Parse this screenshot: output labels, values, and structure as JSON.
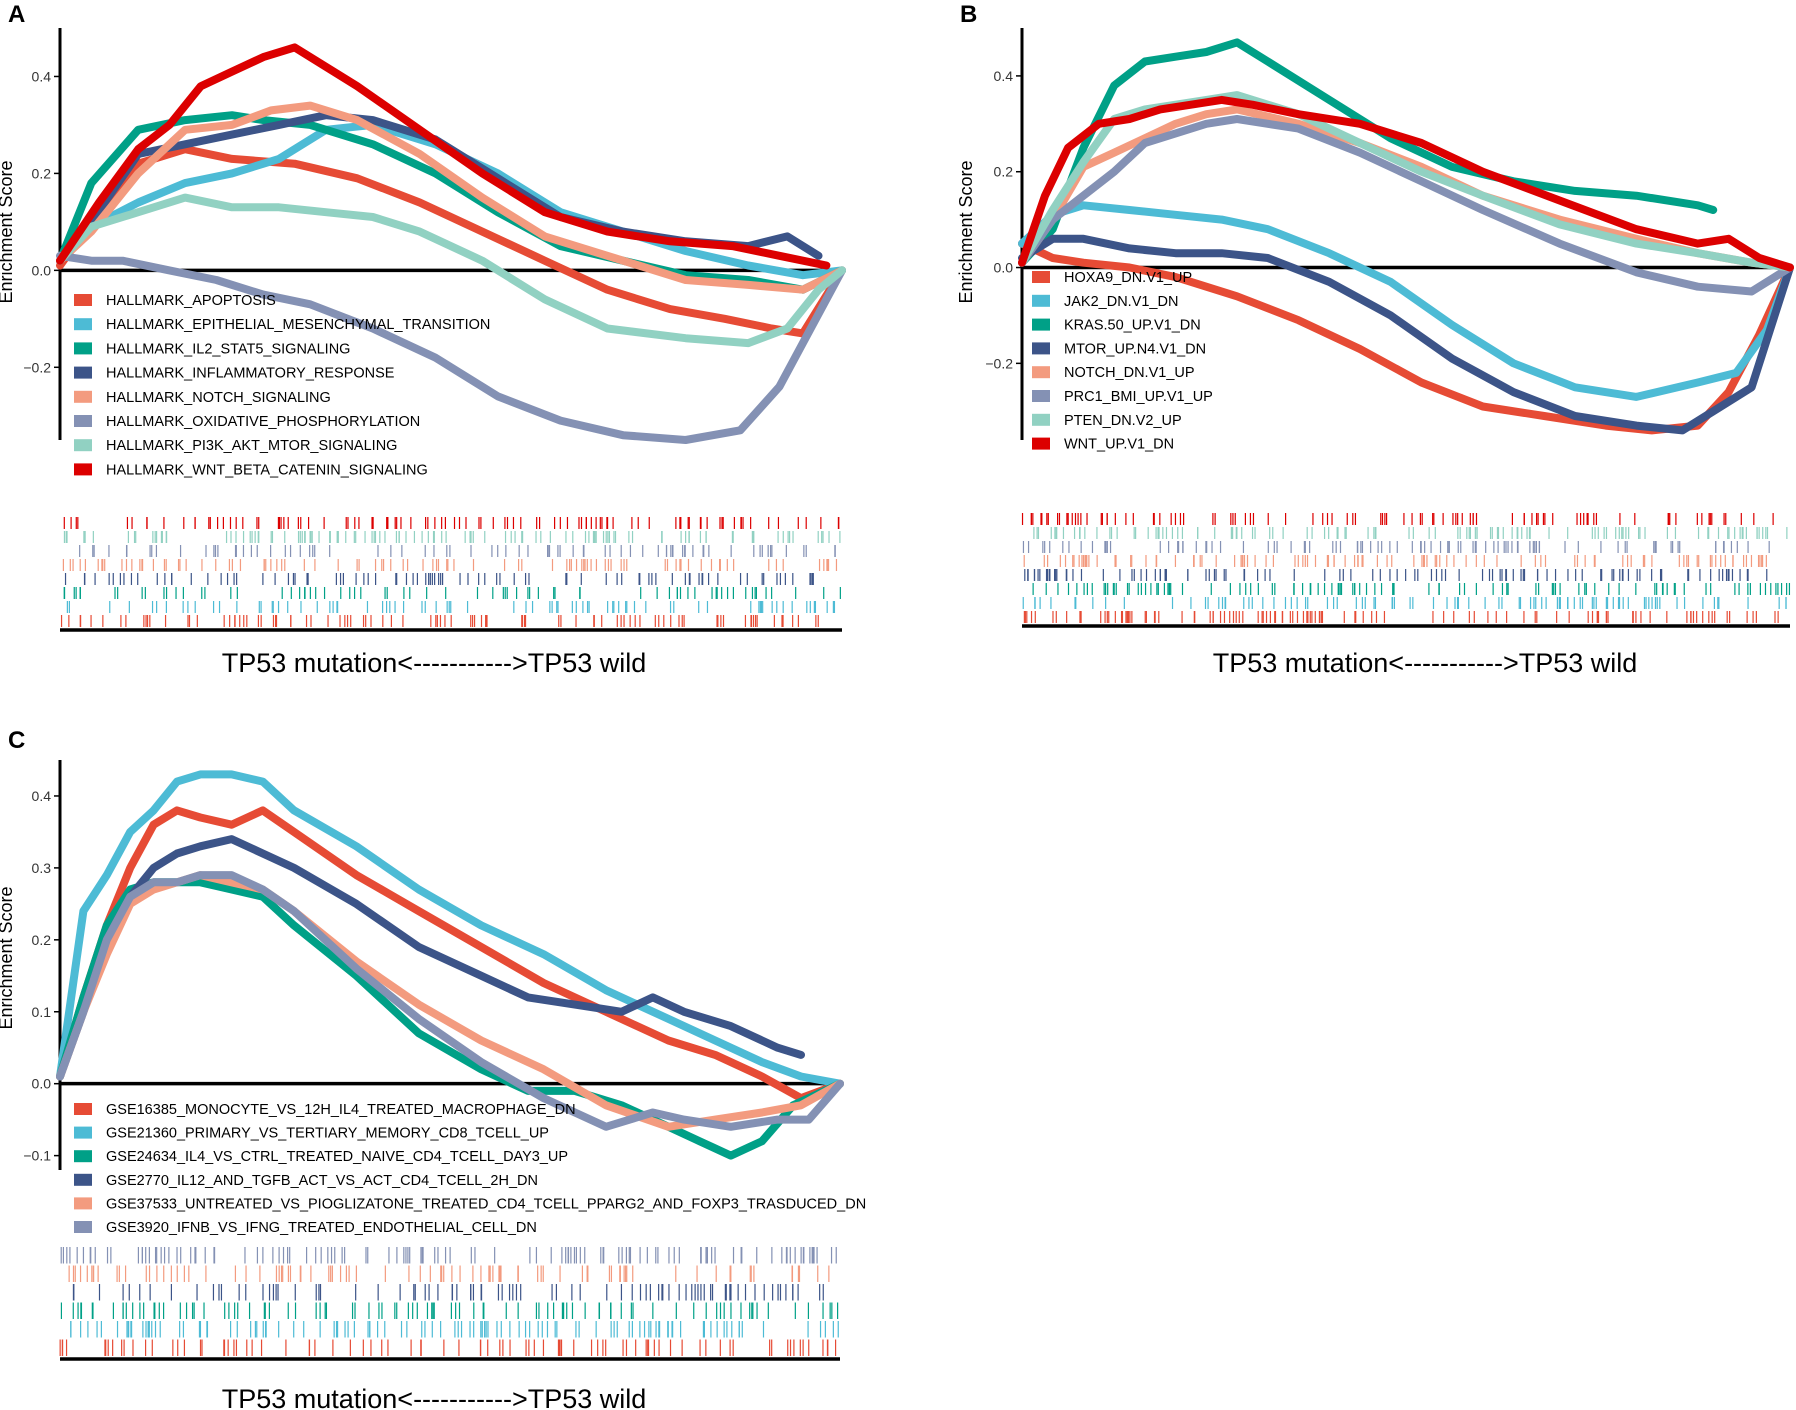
{
  "figure": {
    "palette": [
      "#e64b35",
      "#4dbbd5",
      "#00a087",
      "#3c5488",
      "#f39b7f",
      "#8491b4",
      "#91d1c2",
      "#dc0000"
    ]
  },
  "chart_data": [
    {
      "panel_label": "A",
      "type": "line",
      "ylabel": "Enrichment Score",
      "xlabel": "TP53 mutation<----------->TP53 wild",
      "ylim": [
        -0.35,
        0.5
      ],
      "yticks": [
        -0.2,
        0.0,
        0.2,
        0.4
      ],
      "ytick_labels": [
        "−0.2",
        "0.0",
        "0.2",
        "0.4"
      ],
      "x_range": [
        0,
        100
      ],
      "legend_position": "bottom-left",
      "series": [
        {
          "name": "HALLMARK_APOPTOSIS",
          "color": "#e64b35",
          "x": [
            0,
            4,
            10,
            16,
            22,
            30,
            38,
            46,
            54,
            62,
            70,
            78,
            85,
            91,
            95,
            100
          ],
          "y": [
            0.01,
            0.1,
            0.22,
            0.25,
            0.23,
            0.22,
            0.19,
            0.14,
            0.08,
            0.02,
            -0.04,
            -0.08,
            -0.1,
            -0.12,
            -0.13,
            0.0
          ]
        },
        {
          "name": "HALLMARK_EPITHELIAL_MESENCHYMAL_TRANSITION",
          "color": "#4dbbd5",
          "x": [
            0,
            4,
            10,
            16,
            22,
            28,
            34,
            40,
            48,
            56,
            64,
            72,
            80,
            88,
            95,
            100
          ],
          "y": [
            0.02,
            0.09,
            0.14,
            0.18,
            0.2,
            0.23,
            0.29,
            0.3,
            0.26,
            0.2,
            0.12,
            0.08,
            0.04,
            0.01,
            -0.01,
            0.0
          ]
        },
        {
          "name": "HALLMARK_IL2_STAT5_SIGNALING",
          "color": "#00a087",
          "x": [
            0,
            4,
            10,
            16,
            22,
            26,
            32,
            40,
            48,
            56,
            64,
            72,
            80,
            88,
            95,
            100
          ],
          "y": [
            0.02,
            0.18,
            0.29,
            0.31,
            0.32,
            0.31,
            0.3,
            0.26,
            0.2,
            0.12,
            0.05,
            0.02,
            -0.01,
            -0.02,
            -0.04,
            0.0
          ]
        },
        {
          "name": "HALLMARK_INFLAMMATORY_RESPONSE",
          "color": "#3c5488",
          "x": [
            0,
            4,
            10,
            16,
            22,
            28,
            34,
            40,
            48,
            56,
            64,
            72,
            80,
            88,
            93,
            97
          ],
          "y": [
            0.02,
            0.1,
            0.24,
            0.26,
            0.28,
            0.3,
            0.32,
            0.31,
            0.27,
            0.19,
            0.11,
            0.08,
            0.06,
            0.05,
            0.07,
            0.03
          ]
        },
        {
          "name": "HALLMARK_NOTCH_SIGNALING",
          "color": "#f39b7f",
          "x": [
            0,
            4,
            10,
            16,
            22,
            27,
            32,
            38,
            46,
            54,
            62,
            70,
            80,
            88,
            95,
            100
          ],
          "y": [
            0.02,
            0.08,
            0.2,
            0.29,
            0.3,
            0.33,
            0.34,
            0.31,
            0.24,
            0.15,
            0.07,
            0.03,
            -0.02,
            -0.03,
            -0.04,
            0.0
          ]
        },
        {
          "name": "HALLMARK_OXIDATIVE_PHOSPHORYLATION",
          "color": "#8491b4",
          "x": [
            0,
            4,
            8,
            14,
            20,
            26,
            32,
            40,
            48,
            56,
            64,
            72,
            80,
            87,
            92,
            96,
            100
          ],
          "y": [
            0.03,
            0.02,
            0.02,
            0.0,
            -0.02,
            -0.05,
            -0.07,
            -0.12,
            -0.18,
            -0.26,
            -0.31,
            -0.34,
            -0.35,
            -0.33,
            -0.24,
            -0.12,
            0.0
          ]
        },
        {
          "name": "HALLMARK_PI3K_AKT_MTOR_SIGNALING",
          "color": "#91d1c2",
          "x": [
            0,
            4,
            10,
            16,
            22,
            28,
            34,
            40,
            46,
            54,
            62,
            70,
            80,
            88,
            93,
            97,
            100
          ],
          "y": [
            0.02,
            0.09,
            0.12,
            0.15,
            0.13,
            0.13,
            0.12,
            0.11,
            0.08,
            0.02,
            -0.06,
            -0.12,
            -0.14,
            -0.15,
            -0.12,
            -0.04,
            0.0
          ]
        },
        {
          "name": "HALLMARK_WNT_BETA_CATENIN_SIGNALING",
          "color": "#dc0000",
          "x": [
            0,
            5,
            10,
            14,
            18,
            22,
            26,
            30,
            38,
            46,
            54,
            62,
            70,
            78,
            86,
            92,
            98
          ],
          "y": [
            0.02,
            0.14,
            0.25,
            0.3,
            0.38,
            0.41,
            0.44,
            0.46,
            0.38,
            0.29,
            0.2,
            0.12,
            0.08,
            0.06,
            0.05,
            0.03,
            0.01
          ]
        }
      ],
      "rug_colors_top_to_bottom": [
        "#dc0000",
        "#91d1c2",
        "#8491b4",
        "#f39b7f",
        "#3c5488",
        "#00a087",
        "#4dbbd5",
        "#e64b35"
      ]
    },
    {
      "panel_label": "B",
      "type": "line",
      "ylabel": "Enrichment Score",
      "xlabel": "TP53 mutation<----------->TP53 wild",
      "ylim": [
        -0.36,
        0.5
      ],
      "yticks": [
        -0.2,
        0.0,
        0.2,
        0.4
      ],
      "ytick_labels": [
        "−0.2",
        "0.0",
        "0.2",
        "0.4"
      ],
      "x_range": [
        0,
        100
      ],
      "legend_position": "bottom-left",
      "series": [
        {
          "name": "HOXA9_DN.V1_UP",
          "color": "#e64b35",
          "x": [
            0,
            4,
            8,
            14,
            20,
            28,
            36,
            44,
            52,
            60,
            68,
            76,
            82,
            88,
            92,
            96,
            100
          ],
          "y": [
            0.05,
            0.02,
            0.01,
            0.0,
            -0.02,
            -0.06,
            -0.11,
            -0.17,
            -0.24,
            -0.29,
            -0.31,
            -0.33,
            -0.34,
            -0.33,
            -0.26,
            -0.14,
            0.0
          ]
        },
        {
          "name": "JAK2_DN.V1_DN",
          "color": "#4dbbd5",
          "x": [
            0,
            4,
            8,
            14,
            20,
            26,
            32,
            40,
            48,
            56,
            64,
            72,
            80,
            88,
            93,
            97,
            100
          ],
          "y": [
            0.05,
            0.11,
            0.13,
            0.12,
            0.11,
            0.1,
            0.08,
            0.03,
            -0.03,
            -0.12,
            -0.2,
            -0.25,
            -0.27,
            -0.24,
            -0.22,
            -0.13,
            0.0
          ]
        },
        {
          "name": "KRAS.50_UP.V1_DN",
          "color": "#00a087",
          "x": [
            0,
            4,
            8,
            12,
            16,
            20,
            24,
            28,
            32,
            40,
            48,
            56,
            64,
            72,
            80,
            88,
            90
          ],
          "y": [
            0.01,
            0.08,
            0.25,
            0.38,
            0.43,
            0.44,
            0.45,
            0.47,
            0.43,
            0.35,
            0.27,
            0.21,
            0.18,
            0.16,
            0.15,
            0.13,
            0.12
          ]
        },
        {
          "name": "MTOR_UP.N4.V1_DN",
          "color": "#3c5488",
          "x": [
            0,
            4,
            8,
            14,
            20,
            26,
            32,
            40,
            48,
            56,
            64,
            72,
            80,
            86,
            90,
            95,
            100
          ],
          "y": [
            0.02,
            0.06,
            0.06,
            0.04,
            0.03,
            0.03,
            0.02,
            -0.03,
            -0.1,
            -0.19,
            -0.26,
            -0.31,
            -0.33,
            -0.34,
            -0.3,
            -0.25,
            0.0
          ]
        },
        {
          "name": "NOTCH_DN.V1_UP",
          "color": "#f39b7f",
          "x": [
            0,
            4,
            8,
            12,
            16,
            20,
            24,
            28,
            36,
            44,
            52,
            60,
            70,
            80,
            88,
            95,
            100
          ],
          "y": [
            0.01,
            0.1,
            0.21,
            0.24,
            0.27,
            0.3,
            0.32,
            0.33,
            0.3,
            0.26,
            0.21,
            0.15,
            0.1,
            0.06,
            0.03,
            0.01,
            0.0
          ]
        },
        {
          "name": "PRC1_BMI_UP.V1_UP",
          "color": "#8491b4",
          "x": [
            0,
            4,
            8,
            12,
            16,
            20,
            24,
            28,
            36,
            44,
            52,
            60,
            70,
            80,
            88,
            95,
            100
          ],
          "y": [
            0.01,
            0.1,
            0.15,
            0.2,
            0.26,
            0.28,
            0.3,
            0.31,
            0.29,
            0.24,
            0.18,
            0.12,
            0.05,
            -0.01,
            -0.04,
            -0.05,
            0.0
          ]
        },
        {
          "name": "PTEN_DN.V2_UP",
          "color": "#91d1c2",
          "x": [
            0,
            4,
            8,
            12,
            16,
            20,
            24,
            28,
            36,
            44,
            52,
            60,
            70,
            80,
            88,
            95,
            100
          ],
          "y": [
            0.01,
            0.12,
            0.22,
            0.31,
            0.33,
            0.34,
            0.35,
            0.36,
            0.32,
            0.26,
            0.2,
            0.15,
            0.09,
            0.05,
            0.03,
            0.01,
            0.0
          ]
        },
        {
          "name": "WNT_UP.V1_DN",
          "color": "#dc0000",
          "x": [
            0,
            3,
            6,
            10,
            14,
            18,
            22,
            26,
            30,
            36,
            44,
            52,
            60,
            70,
            80,
            88,
            92,
            96,
            100
          ],
          "y": [
            0.01,
            0.15,
            0.25,
            0.3,
            0.31,
            0.33,
            0.34,
            0.35,
            0.34,
            0.32,
            0.3,
            0.26,
            0.2,
            0.14,
            0.08,
            0.05,
            0.06,
            0.02,
            0.0
          ]
        }
      ],
      "rug_colors_top_to_bottom": [
        "#dc0000",
        "#91d1c2",
        "#8491b4",
        "#f39b7f",
        "#3c5488",
        "#00a087",
        "#4dbbd5",
        "#e64b35"
      ]
    },
    {
      "panel_label": "C",
      "type": "line",
      "ylabel": "Enrichment Score",
      "xlabel": "TP53 mutation<----------->TP53 wild",
      "ylim": [
        -0.12,
        0.45
      ],
      "yticks": [
        -0.1,
        0.0,
        0.1,
        0.2,
        0.3,
        0.4
      ],
      "ytick_labels": [
        "−0.1",
        "0.0",
        "0.1",
        "0.2",
        "0.3",
        "0.4"
      ],
      "x_range": [
        0,
        100
      ],
      "legend_position": "bottom-left",
      "series": [
        {
          "name": "GSE16385_MONOCYTE_VS_12H_IL4_TREATED_MACROPHAGE_DN",
          "color": "#e64b35",
          "x": [
            0,
            3,
            6,
            9,
            12,
            15,
            18,
            22,
            26,
            30,
            38,
            46,
            54,
            62,
            70,
            78,
            84,
            90,
            95,
            100
          ],
          "y": [
            0.01,
            0.12,
            0.22,
            0.3,
            0.36,
            0.38,
            0.37,
            0.36,
            0.38,
            0.35,
            0.29,
            0.24,
            0.19,
            0.14,
            0.1,
            0.06,
            0.04,
            0.01,
            -0.02,
            0.0
          ]
        },
        {
          "name": "GSE21360_PRIMARY_VS_TERTIARY_MEMORY_CD8_TCELL_UP",
          "color": "#4dbbd5",
          "x": [
            0,
            3,
            6,
            9,
            12,
            15,
            18,
            22,
            26,
            30,
            38,
            46,
            54,
            62,
            70,
            78,
            84,
            90,
            95,
            100
          ],
          "y": [
            0.01,
            0.24,
            0.29,
            0.35,
            0.38,
            0.42,
            0.43,
            0.43,
            0.42,
            0.38,
            0.33,
            0.27,
            0.22,
            0.18,
            0.13,
            0.09,
            0.06,
            0.03,
            0.01,
            0.0
          ]
        },
        {
          "name": "GSE24634_IL4_VS_CTRL_TREATED_NAIVE_CD4_TCELL_DAY3_UP",
          "color": "#00a087",
          "x": [
            0,
            3,
            6,
            9,
            12,
            15,
            18,
            22,
            26,
            30,
            38,
            46,
            54,
            60,
            66,
            72,
            78,
            82,
            86,
            90,
            94,
            100
          ],
          "y": [
            0.01,
            0.12,
            0.22,
            0.27,
            0.28,
            0.28,
            0.28,
            0.27,
            0.26,
            0.22,
            0.15,
            0.07,
            0.02,
            -0.01,
            -0.01,
            -0.03,
            -0.06,
            -0.08,
            -0.1,
            -0.08,
            -0.03,
            0.0
          ]
        },
        {
          "name": "GSE2770_IL12_AND_TGFB_ACT_VS_ACT_CD4_TCELL_2H_DN",
          "color": "#3c5488",
          "x": [
            0,
            3,
            6,
            9,
            12,
            15,
            18,
            22,
            26,
            30,
            38,
            46,
            54,
            60,
            66,
            72,
            76,
            80,
            86,
            92,
            95
          ],
          "y": [
            0.01,
            0.1,
            0.2,
            0.26,
            0.3,
            0.32,
            0.33,
            0.34,
            0.32,
            0.3,
            0.25,
            0.19,
            0.15,
            0.12,
            0.11,
            0.1,
            0.12,
            0.1,
            0.08,
            0.05,
            0.04
          ]
        },
        {
          "name": "GSE37533_UNTREATED_VS_PIOGLIZATONE_TREATED_CD4_TCELL_PPARG2_AND_FOXP3_TRASDUCED_DN",
          "color": "#f39b7f",
          "x": [
            0,
            3,
            6,
            9,
            12,
            15,
            18,
            22,
            26,
            30,
            38,
            46,
            54,
            62,
            70,
            78,
            84,
            90,
            95,
            100
          ],
          "y": [
            0.01,
            0.1,
            0.18,
            0.25,
            0.27,
            0.28,
            0.29,
            0.28,
            0.27,
            0.24,
            0.17,
            0.11,
            0.06,
            0.02,
            -0.03,
            -0.06,
            -0.05,
            -0.04,
            -0.03,
            0.0
          ]
        },
        {
          "name": "GSE3920_IFNB_VS_IFNG_TREATED_ENDOTHELIAL_CELL_DN",
          "color": "#8491b4",
          "x": [
            0,
            3,
            6,
            9,
            12,
            15,
            18,
            22,
            26,
            30,
            38,
            46,
            54,
            62,
            70,
            76,
            80,
            86,
            92,
            96,
            100
          ],
          "y": [
            0.01,
            0.1,
            0.2,
            0.26,
            0.28,
            0.28,
            0.29,
            0.29,
            0.27,
            0.24,
            0.16,
            0.09,
            0.03,
            -0.02,
            -0.06,
            -0.04,
            -0.05,
            -0.06,
            -0.05,
            -0.05,
            0.0
          ]
        }
      ],
      "rug_colors_top_to_bottom": [
        "#8491b4",
        "#f39b7f",
        "#3c5488",
        "#00a087",
        "#4dbbd5",
        "#e64b35"
      ]
    }
  ]
}
